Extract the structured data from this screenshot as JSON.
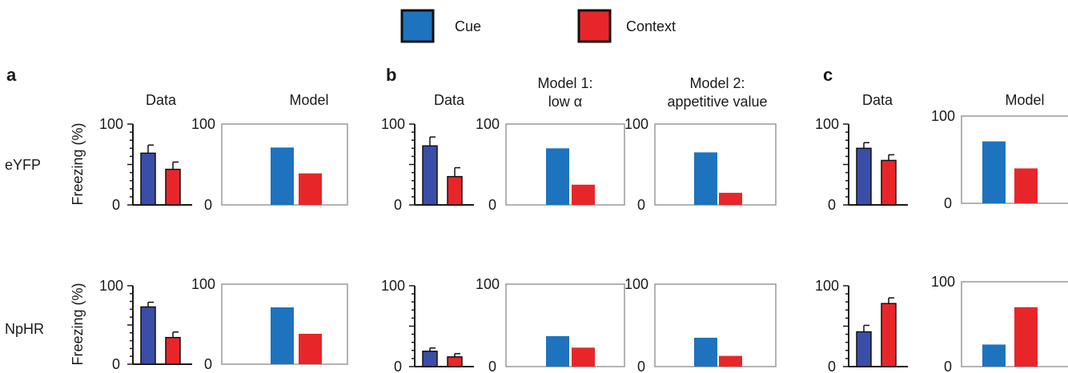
{
  "legend": [
    {
      "label": "Cue",
      "color": "#1e73be"
    },
    {
      "label": "Context",
      "color": "#e8262a"
    }
  ],
  "colors": {
    "data_cue": "#3a4ea8",
    "data_context": "#e8262a",
    "model_cue": "#1e73be",
    "model_context": "#e8262a",
    "axis": "#1a1a1a",
    "box": "#9a9a9a"
  },
  "row_labels": [
    "eYFP",
    "NpHR"
  ],
  "y_axis_label": "Freezing (%)",
  "panels": [
    {
      "letter": "a",
      "columns": [
        {
          "title": [
            "Data"
          ],
          "style": "data"
        },
        {
          "title": [
            "Model"
          ],
          "style": "model"
        }
      ]
    },
    {
      "letter": "b",
      "columns": [
        {
          "title": [
            "Data"
          ],
          "style": "data"
        },
        {
          "title": [
            "Model 1:",
            "low α"
          ],
          "style": "model"
        },
        {
          "title": [
            "Model 2:",
            "appetitive value"
          ],
          "style": "model"
        }
      ]
    },
    {
      "letter": "c",
      "columns": [
        {
          "title": [
            "Data"
          ],
          "style": "data"
        },
        {
          "title": [
            "Model"
          ],
          "style": "model"
        }
      ]
    }
  ],
  "chart_data": [
    {
      "type": "bar",
      "panel": "a",
      "column": "Data",
      "row": "eYFP",
      "categories": [
        "Cue",
        "Context"
      ],
      "values": [
        64,
        44
      ],
      "errors": [
        10,
        9
      ],
      "ylim": [
        0,
        100
      ],
      "tick_labels": [
        "0",
        "100"
      ]
    },
    {
      "type": "bar",
      "panel": "a",
      "column": "Model",
      "row": "eYFP",
      "categories": [
        "Cue",
        "Context"
      ],
      "values": [
        71,
        39
      ],
      "ylim": [
        0,
        100
      ],
      "tick_labels": [
        "0",
        "100"
      ]
    },
    {
      "type": "bar",
      "panel": "b",
      "column": "Data",
      "row": "eYFP",
      "categories": [
        "Cue",
        "Context"
      ],
      "values": [
        73,
        35
      ],
      "errors": [
        11,
        11
      ],
      "ylim": [
        0,
        100
      ],
      "tick_labels": [
        "0",
        "100"
      ]
    },
    {
      "type": "bar",
      "panel": "b",
      "column": "Model 1: low α",
      "row": "eYFP",
      "categories": [
        "Cue",
        "Context"
      ],
      "values": [
        70,
        25
      ],
      "ylim": [
        0,
        100
      ],
      "tick_labels": [
        "0",
        "100"
      ]
    },
    {
      "type": "bar",
      "panel": "b",
      "column": "Model 2: appetitive value",
      "row": "eYFP",
      "categories": [
        "Cue",
        "Context"
      ],
      "values": [
        65,
        15
      ],
      "ylim": [
        0,
        100
      ],
      "tick_labels": [
        "0",
        "100"
      ]
    },
    {
      "type": "bar",
      "panel": "c",
      "column": "Data",
      "row": "eYFP",
      "categories": [
        "Cue",
        "Context"
      ],
      "values": [
        70,
        55
      ],
      "errors": [
        7,
        7
      ],
      "ylim": [
        0,
        100
      ],
      "tick_labels": [
        "0",
        "100"
      ]
    },
    {
      "type": "bar",
      "panel": "c",
      "column": "Model",
      "row": "eYFP",
      "categories": [
        "Cue",
        "Context"
      ],
      "values": [
        71,
        40
      ],
      "ylim": [
        0,
        100
      ],
      "tick_labels": [
        "0",
        "100"
      ]
    },
    {
      "type": "bar",
      "panel": "a",
      "column": "Data",
      "row": "NpHR",
      "categories": [
        "Cue",
        "Context"
      ],
      "values": [
        73,
        34
      ],
      "errors": [
        6,
        7
      ],
      "ylim": [
        0,
        100
      ],
      "tick_labels": [
        "0",
        "100"
      ]
    },
    {
      "type": "bar",
      "panel": "a",
      "column": "Model",
      "row": "NpHR",
      "categories": [
        "Cue",
        "Context"
      ],
      "values": [
        71,
        38
      ],
      "ylim": [
        0,
        100
      ],
      "tick_labels": [
        "0",
        "100"
      ]
    },
    {
      "type": "bar",
      "panel": "b",
      "column": "Data",
      "row": "NpHR",
      "categories": [
        "Cue",
        "Context"
      ],
      "values": [
        19,
        12
      ],
      "errors": [
        4,
        4
      ],
      "ylim": [
        0,
        100
      ],
      "tick_labels": [
        "0",
        "100"
      ]
    },
    {
      "type": "bar",
      "panel": "b",
      "column": "Model 1: low α",
      "row": "NpHR",
      "categories": [
        "Cue",
        "Context"
      ],
      "values": [
        37,
        23
      ],
      "ylim": [
        0,
        100
      ],
      "tick_labels": [
        "0",
        "100"
      ]
    },
    {
      "type": "bar",
      "panel": "b",
      "column": "Model 2: appetitive value",
      "row": "NpHR",
      "categories": [
        "Cue",
        "Context"
      ],
      "values": [
        35,
        13
      ],
      "ylim": [
        0,
        100
      ],
      "tick_labels": [
        "0",
        "100"
      ]
    },
    {
      "type": "bar",
      "panel": "c",
      "column": "Data",
      "row": "NpHR",
      "categories": [
        "Cue",
        "Context"
      ],
      "values": [
        43,
        78
      ],
      "errors": [
        8,
        7
      ],
      "ylim": [
        0,
        100
      ],
      "tick_labels": [
        "0",
        "100"
      ]
    },
    {
      "type": "bar",
      "panel": "c",
      "column": "Model",
      "row": "NpHR",
      "categories": [
        "Cue",
        "Context"
      ],
      "values": [
        26,
        70
      ],
      "ylim": [
        0,
        100
      ],
      "tick_labels": [
        "0",
        "100"
      ]
    }
  ]
}
